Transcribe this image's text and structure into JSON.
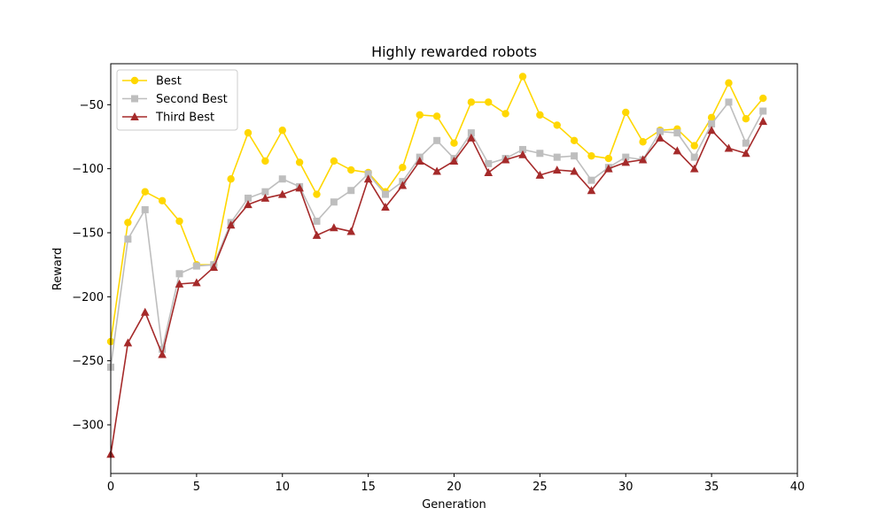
{
  "chart_data": {
    "type": "line",
    "title": "Highly rewarded robots",
    "xlabel": "Generation",
    "ylabel": "Reward",
    "xlim": [
      0,
      40
    ],
    "ylim": [
      -338,
      -18
    ],
    "xticks": [
      0,
      5,
      10,
      15,
      20,
      25,
      30,
      35,
      40
    ],
    "yticks": [
      -300,
      -250,
      -200,
      -150,
      -100,
      -50
    ],
    "grid": false,
    "legend_position": "top-left",
    "x": [
      0,
      1,
      2,
      3,
      4,
      5,
      6,
      7,
      8,
      9,
      10,
      11,
      12,
      13,
      14,
      15,
      16,
      17,
      18,
      19,
      20,
      21,
      22,
      23,
      24,
      25,
      26,
      27,
      28,
      29,
      30,
      31,
      32,
      33,
      34,
      35,
      36,
      37,
      38
    ],
    "series": [
      {
        "name": "Best",
        "color": "#FFD700",
        "marker": "circle",
        "values": [
          -235,
          -142,
          -118,
          -125,
          -141,
          -175,
          -175,
          -108,
          -72,
          -94,
          -70,
          -95,
          -120,
          -94,
          -101,
          -103,
          -118,
          -99,
          -58,
          -59,
          -80,
          -48,
          -48,
          -57,
          -28,
          -58,
          -66,
          -78,
          -90,
          -92,
          -56,
          -79,
          -70,
          -69,
          -82,
          -60,
          -33,
          -61,
          -45
        ]
      },
      {
        "name": "Second Best",
        "color": "#BEBEBE",
        "marker": "square",
        "values": [
          -255,
          -155,
          -132,
          -241,
          -182,
          -176,
          -175,
          -142,
          -123,
          -118,
          -108,
          -114,
          -141,
          -126,
          -117,
          -104,
          -120,
          -110,
          -91,
          -78,
          -92,
          -72,
          -96,
          -92,
          -85,
          -88,
          -91,
          -90,
          -109,
          -99,
          -91,
          -93,
          -71,
          -72,
          -91,
          -65,
          -48,
          -80,
          -55
        ]
      },
      {
        "name": "Third Best",
        "color": "#A52A2A",
        "marker": "triangle",
        "values": [
          -323,
          -236,
          -212,
          -245,
          -190,
          -189,
          -177,
          -144,
          -128,
          -123,
          -120,
          -115,
          -152,
          -146,
          -149,
          -108,
          -130,
          -113,
          -94,
          -102,
          -94,
          -76,
          -103,
          -93,
          -89,
          -105,
          -101,
          -102,
          -117,
          -100,
          -95,
          -93,
          -76,
          -86,
          -100,
          -70,
          -84,
          -88,
          -63
        ]
      }
    ]
  }
}
